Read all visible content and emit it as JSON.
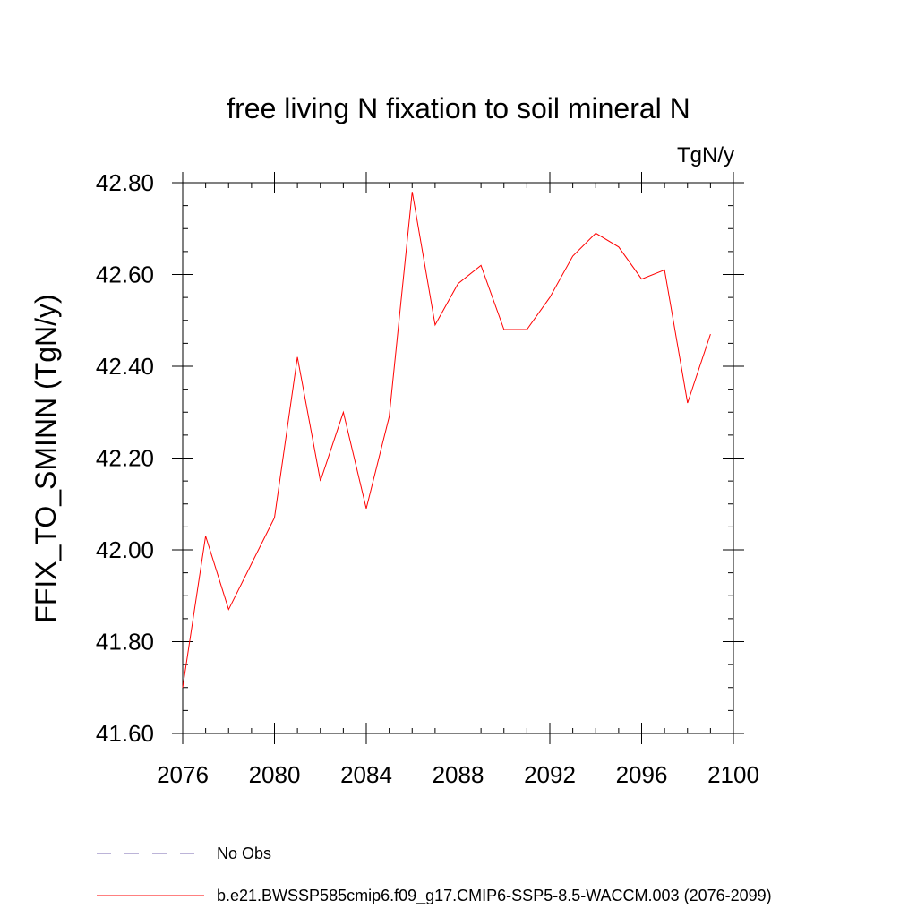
{
  "chart_data": {
    "type": "line",
    "title": "free living N fixation to soil mineral N",
    "units": "TgN/y",
    "ylabel": "FFIX_TO_SMINN  (TgN/y)",
    "xlabel": "",
    "xlim": [
      2076,
      2100
    ],
    "ylim": [
      41.6,
      42.8
    ],
    "xticks": [
      2076,
      2080,
      2084,
      2088,
      2092,
      2096,
      2100
    ],
    "xtick_labels": [
      "2076",
      "2080",
      "2084",
      "2088",
      "2092",
      "2096",
      "2100"
    ],
    "yticks": [
      41.6,
      41.8,
      42.0,
      42.2,
      42.4,
      42.6,
      42.8
    ],
    "ytick_labels": [
      "41.60",
      "41.80",
      "42.00",
      "42.20",
      "42.40",
      "42.60",
      "42.80"
    ],
    "grid": false,
    "legend_position": "bottom",
    "series": [
      {
        "name": "b.e21.BWSSP585cmip6.f09_g17.CMIP6-SSP5-8.5-WACCM.003 (2076-2099)",
        "color": "#ff0000",
        "style": "solid",
        "x": [
          2076,
          2077,
          2078,
          2079,
          2080,
          2081,
          2082,
          2083,
          2084,
          2085,
          2086,
          2087,
          2088,
          2089,
          2090,
          2091,
          2092,
          2093,
          2094,
          2095,
          2096,
          2097,
          2098,
          2099
        ],
        "y": [
          41.7,
          42.03,
          41.87,
          41.97,
          42.07,
          42.42,
          42.15,
          42.3,
          42.09,
          42.29,
          42.78,
          42.49,
          42.58,
          42.62,
          42.48,
          42.48,
          42.55,
          42.64,
          42.69,
          42.66,
          42.59,
          42.61,
          42.32,
          42.47
        ]
      }
    ],
    "legend": [
      {
        "label": "No Obs",
        "color": "#7a6ab0",
        "style": "dashed"
      },
      {
        "label": "b.e21.BWSSP585cmip6.f09_g17.CMIP6-SSP5-8.5-WACCM.003 (2076-2099)",
        "color": "#ff0000",
        "style": "solid"
      }
    ]
  }
}
